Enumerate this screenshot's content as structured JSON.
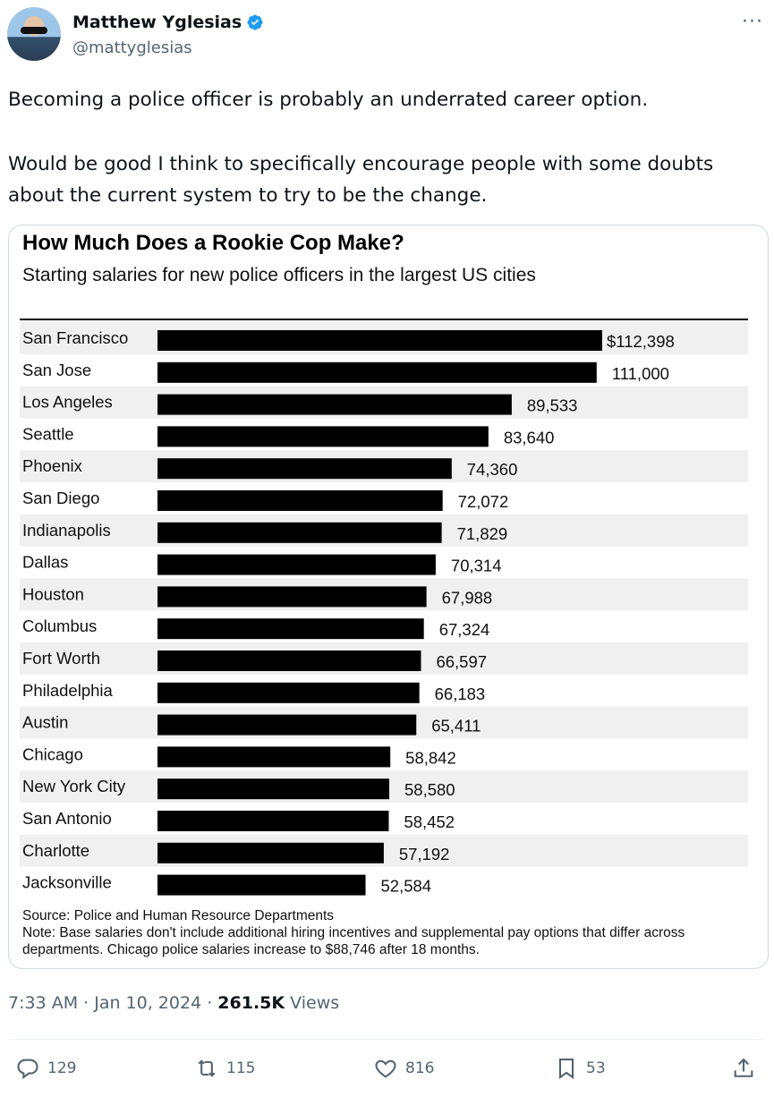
{
  "author": {
    "name": "Matthew Yglesias",
    "handle": "@mattyglesias"
  },
  "tweet": {
    "line1": "Becoming a police officer is probably an underrated career option.",
    "line2": "Would be good I think to specifically encourage people with some doubts about the current system to try to be the change."
  },
  "chart_data": {
    "type": "bar",
    "orientation": "horizontal",
    "title": "How Much Does a Rookie Cop Make?",
    "subtitle": "Starting salaries for new police officers in the largest US cities",
    "categories": [
      "San Francisco",
      "San Jose",
      "Los Angeles",
      "Seattle",
      "Phoenix",
      "San Diego",
      "Indianapolis",
      "Dallas",
      "Houston",
      "Columbus",
      "Fort Worth",
      "Philadelphia",
      "Austin",
      "Chicago",
      "New York City",
      "San Antonio",
      "Charlotte",
      "Jacksonville"
    ],
    "values": [
      112398,
      111000,
      89533,
      83640,
      74360,
      72072,
      71829,
      70314,
      67988,
      67324,
      66597,
      66183,
      65411,
      58842,
      58580,
      58452,
      57192,
      52584
    ],
    "labels": [
      "$112,398",
      "111,000",
      "89,533",
      "83,640",
      "74,360",
      "72,072",
      "71,829",
      "70,314",
      "67,988",
      "67,324",
      "66,597",
      "66,183",
      "65,411",
      "58,842",
      "58,580",
      "58,452",
      "57,192",
      "52,584"
    ],
    "bar_color": "#000000",
    "stripe_color": "#f0f0f0",
    "source": "Source: Police and Human Resource Departments",
    "note": "Note: Base salaries don't include additional hiring incentives and supplemental pay options that differ across departments. Chicago police salaries increase to $88,746 after 18 months."
  },
  "meta": {
    "time": "7:33 AM · Jan 10, 2024 · ",
    "views_count": "261.5K",
    "views_label": " Views"
  },
  "actions": {
    "replies": "129",
    "reposts": "115",
    "likes": "816",
    "bookmarks": "53"
  },
  "colors": {
    "verified": "#1d9bf0",
    "secondary_text": "#536471"
  }
}
